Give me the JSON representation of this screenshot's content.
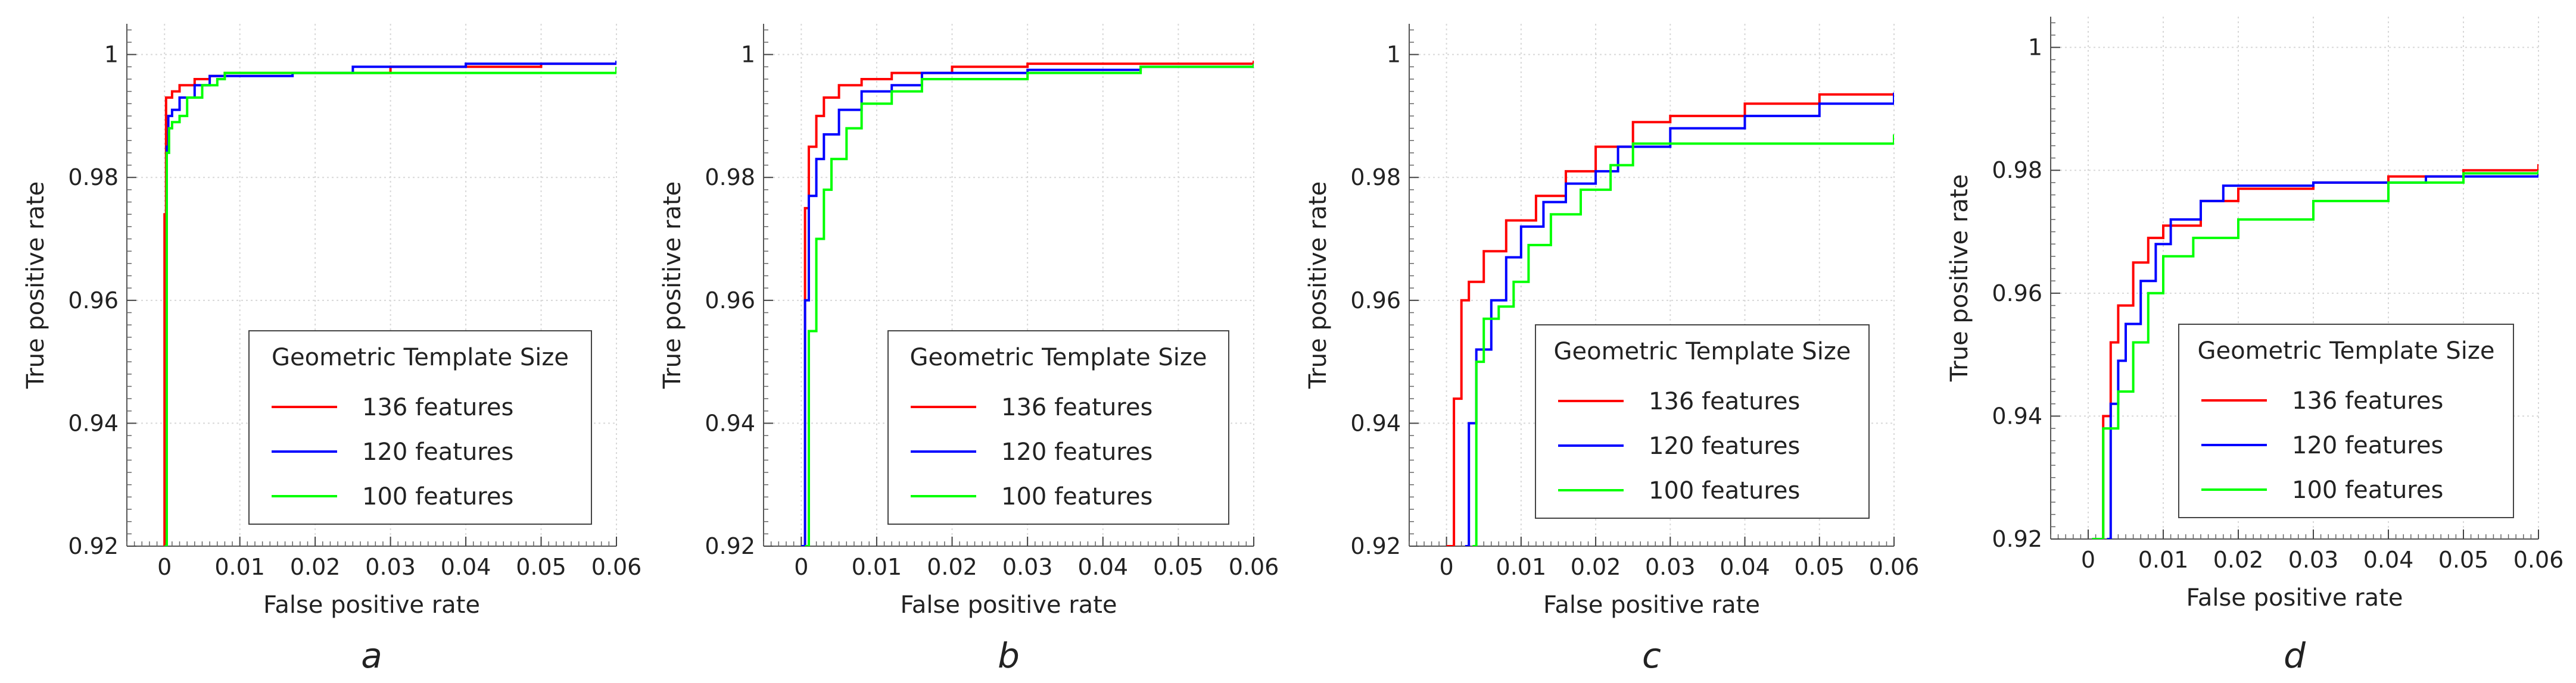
{
  "chart_data": [
    {
      "type": "line",
      "panel_label": "a",
      "xlabel": "False positive rate",
      "ylabel": "True positive rate",
      "xlim": [
        -0.005,
        0.06
      ],
      "ylim": [
        0.92,
        1.005
      ],
      "x_ticks": [
        0,
        0.01,
        0.02,
        0.03,
        0.04,
        0.05,
        0.06
      ],
      "x_tick_labels": [
        "0",
        "0.01",
        "0.02",
        "0.03",
        "0.04",
        "0.05",
        "0.06"
      ],
      "y_ticks": [
        0.92,
        0.94,
        0.96,
        0.98,
        1
      ],
      "y_tick_labels": [
        "0.92",
        "0.94",
        "0.96",
        "0.98",
        "1"
      ],
      "grid": true,
      "legend": {
        "title": "Geometric Template Size",
        "placement": "lower-right",
        "entries": [
          "136 features",
          "120 features",
          "100 features"
        ]
      },
      "series": [
        {
          "name": "136 features",
          "color": "#ff0000",
          "points": [
            [
              0,
              0.92
            ],
            [
              0,
              0.974
            ],
            [
              0.0002,
              0.993
            ],
            [
              0.001,
              0.994
            ],
            [
              0.002,
              0.995
            ],
            [
              0.004,
              0.996
            ],
            [
              0.006,
              0.9965
            ],
            [
              0.008,
              0.997
            ],
            [
              0.02,
              0.997
            ],
            [
              0.03,
              0.998
            ],
            [
              0.04,
              0.998
            ],
            [
              0.05,
              0.9985
            ],
            [
              0.06,
              0.999
            ]
          ]
        },
        {
          "name": "120 features",
          "color": "#0000ff",
          "points": [
            [
              0,
              0.92
            ],
            [
              0.0003,
              0.985
            ],
            [
              0.0005,
              0.99
            ],
            [
              0.001,
              0.991
            ],
            [
              0.002,
              0.993
            ],
            [
              0.004,
              0.995
            ],
            [
              0.006,
              0.9965
            ],
            [
              0.016,
              0.9965
            ],
            [
              0.017,
              0.997
            ],
            [
              0.024,
              0.997
            ],
            [
              0.025,
              0.998
            ],
            [
              0.04,
              0.9985
            ],
            [
              0.06,
              0.999
            ]
          ]
        },
        {
          "name": "100 features",
          "color": "#00ff00",
          "points": [
            [
              0,
              0.92
            ],
            [
              0.0003,
              0.984
            ],
            [
              0.0006,
              0.988
            ],
            [
              0.001,
              0.989
            ],
            [
              0.002,
              0.99
            ],
            [
              0.003,
              0.993
            ],
            [
              0.005,
              0.995
            ],
            [
              0.007,
              0.996
            ],
            [
              0.008,
              0.997
            ],
            [
              0.06,
              0.998
            ]
          ]
        }
      ]
    },
    {
      "type": "line",
      "panel_label": "b",
      "xlabel": "False positive rate",
      "ylabel": "True positive rate",
      "xlim": [
        -0.005,
        0.06
      ],
      "ylim": [
        0.92,
        1.005
      ],
      "x_ticks": [
        0,
        0.01,
        0.02,
        0.03,
        0.04,
        0.05,
        0.06
      ],
      "x_tick_labels": [
        "0",
        "0.01",
        "0.02",
        "0.03",
        "0.04",
        "0.05",
        "0.06"
      ],
      "y_ticks": [
        0.92,
        0.94,
        0.96,
        0.98,
        1
      ],
      "y_tick_labels": [
        "0.92",
        "0.94",
        "0.96",
        "0.98",
        "1"
      ],
      "grid": true,
      "legend": {
        "title": "Geometric Template Size",
        "placement": "lower-right",
        "entries": [
          "136 features",
          "120 features",
          "100 features"
        ]
      },
      "series": [
        {
          "name": "136 features",
          "color": "#ff0000",
          "points": [
            [
              0,
              0.92
            ],
            [
              0.0005,
              0.975
            ],
            [
              0.001,
              0.985
            ],
            [
              0.002,
              0.99
            ],
            [
              0.003,
              0.993
            ],
            [
              0.005,
              0.995
            ],
            [
              0.008,
              0.996
            ],
            [
              0.012,
              0.997
            ],
            [
              0.02,
              0.998
            ],
            [
              0.03,
              0.9985
            ],
            [
              0.06,
              0.999
            ]
          ]
        },
        {
          "name": "120 features",
          "color": "#0000ff",
          "points": [
            [
              0,
              0.92
            ],
            [
              0.0005,
              0.96
            ],
            [
              0.001,
              0.977
            ],
            [
              0.002,
              0.983
            ],
            [
              0.003,
              0.987
            ],
            [
              0.005,
              0.991
            ],
            [
              0.008,
              0.994
            ],
            [
              0.012,
              0.995
            ],
            [
              0.016,
              0.997
            ],
            [
              0.03,
              0.9975
            ],
            [
              0.045,
              0.998
            ],
            [
              0.06,
              0.9985
            ]
          ]
        },
        {
          "name": "100 features",
          "color": "#00ff00",
          "points": [
            [
              0.0005,
              0.92
            ],
            [
              0.001,
              0.955
            ],
            [
              0.002,
              0.97
            ],
            [
              0.003,
              0.978
            ],
            [
              0.004,
              0.983
            ],
            [
              0.006,
              0.988
            ],
            [
              0.008,
              0.992
            ],
            [
              0.012,
              0.994
            ],
            [
              0.016,
              0.996
            ],
            [
              0.03,
              0.997
            ],
            [
              0.045,
              0.998
            ],
            [
              0.06,
              0.9985
            ]
          ]
        }
      ]
    },
    {
      "type": "line",
      "panel_label": "c",
      "xlabel": "False positive rate",
      "ylabel": "True positive rate",
      "xlim": [
        -0.005,
        0.06
      ],
      "ylim": [
        0.92,
        1.005
      ],
      "x_ticks": [
        0,
        0.01,
        0.02,
        0.03,
        0.04,
        0.05,
        0.06
      ],
      "x_tick_labels": [
        "0",
        "0.01",
        "0.02",
        "0.03",
        "0.04",
        "0.05",
        "0.06"
      ],
      "y_ticks": [
        0.92,
        0.94,
        0.96,
        0.98,
        1
      ],
      "y_tick_labels": [
        "0.92",
        "0.94",
        "0.96",
        "0.98",
        "1"
      ],
      "grid": true,
      "legend": {
        "title": "Geometric Template Size",
        "placement": "lower-right",
        "entries": [
          "136 features",
          "120 features",
          "100 features"
        ]
      },
      "series": [
        {
          "name": "136 features",
          "color": "#ff0000",
          "points": [
            [
              0,
              0.92
            ],
            [
              0.001,
              0.944
            ],
            [
              0.002,
              0.96
            ],
            [
              0.003,
              0.963
            ],
            [
              0.005,
              0.968
            ],
            [
              0.008,
              0.973
            ],
            [
              0.012,
              0.977
            ],
            [
              0.016,
              0.981
            ],
            [
              0.02,
              0.985
            ],
            [
              0.025,
              0.989
            ],
            [
              0.03,
              0.99
            ],
            [
              0.04,
              0.992
            ],
            [
              0.05,
              0.9935
            ],
            [
              0.06,
              0.9938
            ]
          ]
        },
        {
          "name": "120 features",
          "color": "#0000ff",
          "points": [
            [
              0.0025,
              0.92
            ],
            [
              0.003,
              0.94
            ],
            [
              0.004,
              0.952
            ],
            [
              0.006,
              0.96
            ],
            [
              0.008,
              0.967
            ],
            [
              0.01,
              0.972
            ],
            [
              0.013,
              0.976
            ],
            [
              0.016,
              0.979
            ],
            [
              0.02,
              0.981
            ],
            [
              0.023,
              0.985
            ],
            [
              0.03,
              0.988
            ],
            [
              0.04,
              0.99
            ],
            [
              0.05,
              0.992
            ],
            [
              0.06,
              0.9938
            ]
          ]
        },
        {
          "name": "100 features",
          "color": "#00ff00",
          "points": [
            [
              0.0035,
              0.92
            ],
            [
              0.004,
              0.95
            ],
            [
              0.005,
              0.957
            ],
            [
              0.007,
              0.959
            ],
            [
              0.009,
              0.963
            ],
            [
              0.011,
              0.969
            ],
            [
              0.014,
              0.974
            ],
            [
              0.018,
              0.978
            ],
            [
              0.022,
              0.982
            ],
            [
              0.025,
              0.9855
            ],
            [
              0.06,
              0.987
            ]
          ]
        }
      ]
    },
    {
      "type": "line",
      "panel_label": "d",
      "xlabel": "False positive rate",
      "ylabel": "True positive rate",
      "xlim": [
        -0.005,
        0.06
      ],
      "ylim": [
        0.92,
        1.005
      ],
      "x_ticks": [
        0,
        0.01,
        0.02,
        0.03,
        0.04,
        0.05,
        0.06
      ],
      "x_tick_labels": [
        "0",
        "0.01",
        "0.02",
        "0.03",
        "0.04",
        "0.05",
        "0.06"
      ],
      "y_ticks": [
        0.92,
        0.94,
        0.96,
        0.98,
        1
      ],
      "y_tick_labels": [
        "0.92",
        "0.94",
        "0.96",
        "0.98",
        "1"
      ],
      "grid": true,
      "legend": {
        "title": "Geometric Template Size",
        "placement": "lower-right",
        "entries": [
          "136 features",
          "120 features",
          "100 features"
        ]
      },
      "series": [
        {
          "name": "136 features",
          "color": "#ff0000",
          "points": [
            [
              0.001,
              0.92
            ],
            [
              0.002,
              0.94
            ],
            [
              0.003,
              0.952
            ],
            [
              0.004,
              0.958
            ],
            [
              0.006,
              0.965
            ],
            [
              0.008,
              0.969
            ],
            [
              0.01,
              0.971
            ],
            [
              0.015,
              0.975
            ],
            [
              0.02,
              0.977
            ],
            [
              0.03,
              0.978
            ],
            [
              0.04,
              0.979
            ],
            [
              0.05,
              0.98
            ],
            [
              0.06,
              0.981
            ]
          ]
        },
        {
          "name": "120 features",
          "color": "#0000ff",
          "points": [
            [
              0.0025,
              0.92
            ],
            [
              0.003,
              0.942
            ],
            [
              0.004,
              0.949
            ],
            [
              0.005,
              0.955
            ],
            [
              0.007,
              0.962
            ],
            [
              0.009,
              0.968
            ],
            [
              0.011,
              0.972
            ],
            [
              0.015,
              0.975
            ],
            [
              0.018,
              0.9775
            ],
            [
              0.03,
              0.978
            ],
            [
              0.045,
              0.979
            ],
            [
              0.06,
              0.9795
            ]
          ]
        },
        {
          "name": "100 features",
          "color": "#00ff00",
          "points": [
            [
              0.0005,
              0.92
            ],
            [
              0.002,
              0.938
            ],
            [
              0.004,
              0.944
            ],
            [
              0.006,
              0.952
            ],
            [
              0.008,
              0.96
            ],
            [
              0.01,
              0.966
            ],
            [
              0.014,
              0.969
            ],
            [
              0.02,
              0.972
            ],
            [
              0.03,
              0.975
            ],
            [
              0.04,
              0.978
            ],
            [
              0.05,
              0.9795
            ],
            [
              0.06,
              0.98
            ]
          ]
        }
      ]
    }
  ]
}
